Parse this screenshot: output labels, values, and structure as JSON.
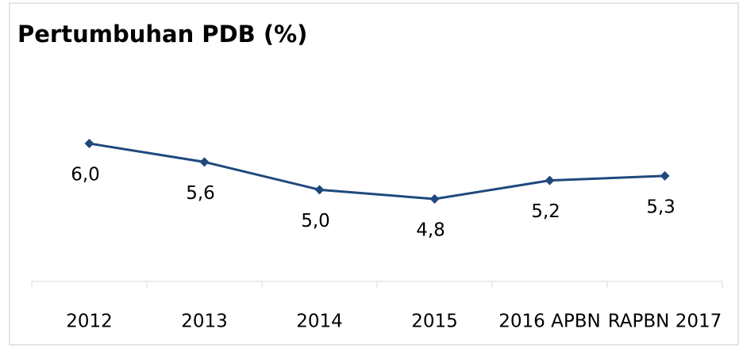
{
  "chart_data": {
    "type": "line",
    "title": "Pertumbuhan PDB (%)",
    "categories": [
      "2012",
      "2013",
      "2014",
      "2015",
      "2016 APBN",
      "RAPBN 2017"
    ],
    "series": [
      {
        "name": "Pertumbuhan PDB",
        "color": "#1f497d",
        "values": [
          6.0,
          5.6,
          5.0,
          4.8,
          5.2,
          5.3
        ],
        "value_labels": [
          "6,0",
          "5,6",
          "5,0",
          "4,8",
          "5,2",
          "5,3"
        ]
      }
    ]
  }
}
